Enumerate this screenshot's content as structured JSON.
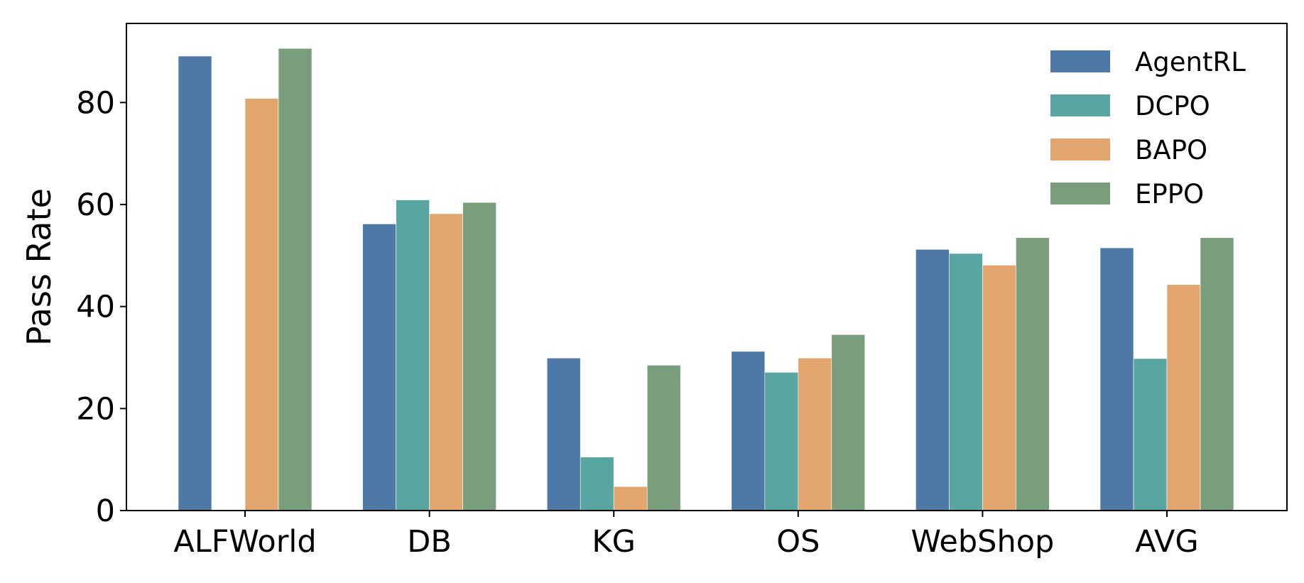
{
  "chart_data": {
    "type": "bar",
    "ylabel": "Pass Rate",
    "xlabel": "",
    "ylim": [
      0,
      95.5
    ],
    "yticks": [
      0,
      20,
      40,
      60,
      80
    ],
    "categories": [
      "ALFWorld",
      "DB",
      "KG",
      "OS",
      "WebShop",
      "AVG"
    ],
    "series": [
      {
        "name": "AgentRL",
        "color": "#4e79a7",
        "values": [
          89.1,
          56.2,
          29.9,
          31.2,
          51.2,
          51.5
        ]
      },
      {
        "name": "DCPO",
        "color": "#59a5a2",
        "values": [
          0,
          60.9,
          10.5,
          27.1,
          50.4,
          29.8
        ]
      },
      {
        "name": "BAPO",
        "color": "#e1a56d",
        "values": [
          80.8,
          58.2,
          4.7,
          29.9,
          48.1,
          44.3
        ]
      },
      {
        "name": "EPPO",
        "color": "#7a9e7c",
        "values": [
          90.6,
          60.4,
          28.5,
          34.5,
          53.5,
          53.5
        ]
      }
    ],
    "legend": "top-right",
    "grid": false
  }
}
